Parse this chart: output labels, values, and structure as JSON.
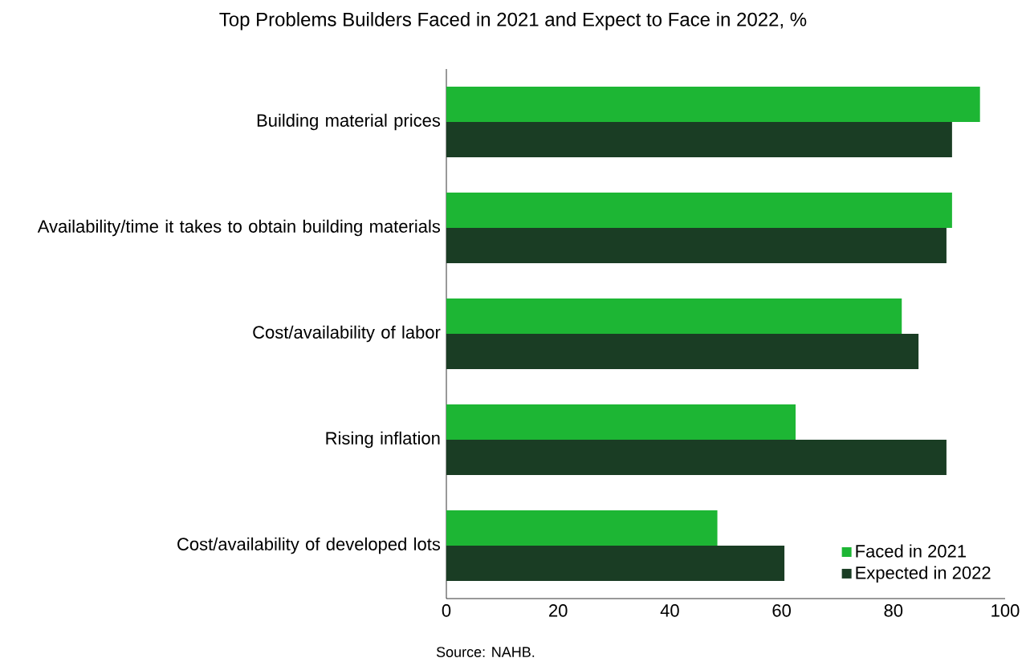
{
  "chart_data": {
    "type": "bar",
    "orientation": "horizontal",
    "title": "Top Problems Builders Faced in 2021 and Expect to Face in 2022, %",
    "categories": [
      "Building material prices",
      "Availability/time it takes to obtain building materials",
      "Cost/availability of labor",
      "Rising inflation",
      "Cost/availability of developed lots"
    ],
    "series": [
      {
        "name": "Faced in 2021",
        "color": "#1db634",
        "values": [
          95.5,
          90.5,
          81.5,
          62.5,
          48.5
        ]
      },
      {
        "name": "Expected in 2022",
        "color": "#1a3d24",
        "values": [
          90.5,
          89.5,
          84.5,
          89.5,
          60.5
        ]
      }
    ],
    "xlim": [
      0,
      100
    ],
    "xticks": [
      0,
      20,
      40,
      60,
      80,
      100
    ],
    "legend": "bottom right",
    "grid": false,
    "annotations": [
      "Source: NAHB."
    ]
  }
}
